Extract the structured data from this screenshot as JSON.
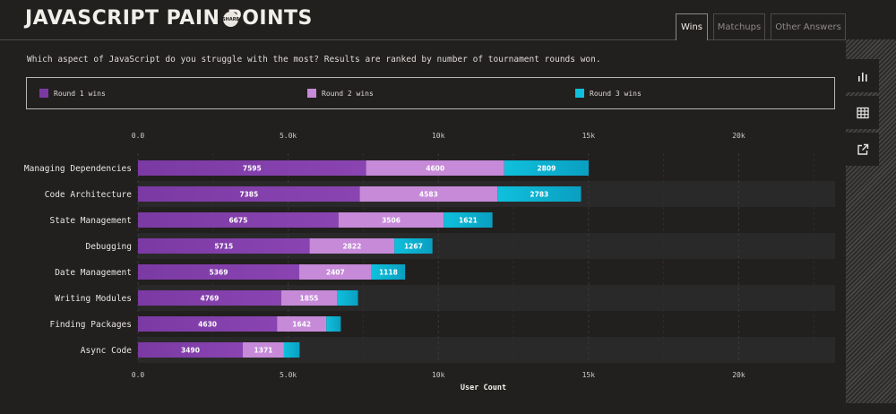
{
  "header": {
    "title": "JAVASCRIPT PAIN POINTS",
    "badge": "SHARE"
  },
  "tabs": [
    {
      "label": "Wins",
      "active": true
    },
    {
      "label": "Matchups",
      "active": false
    },
    {
      "label": "Other Answers",
      "active": false
    }
  ],
  "description": "Which aspect of JavaScript do you struggle with the most? Results are ranked by number of tournament rounds won.",
  "sidebar": {
    "icons": [
      "bar-chart-icon",
      "table-icon",
      "external-link-icon"
    ]
  },
  "chart_data": {
    "type": "bar",
    "orientation": "horizontal",
    "stacked": true,
    "title": "",
    "xlabel": "User Count",
    "ylabel": "",
    "xlim": [
      0,
      23000
    ],
    "ticks": [
      {
        "value": 0,
        "label": "0.0"
      },
      {
        "value": 5000,
        "label": "5.0k"
      },
      {
        "value": 10000,
        "label": "10k"
      },
      {
        "value": 15000,
        "label": "15k"
      },
      {
        "value": 20000,
        "label": "20k"
      }
    ],
    "categories": [
      "Managing Dependencies",
      "Code Architecture",
      "State Management",
      "Debugging",
      "Date Management",
      "Writing Modules",
      "Finding Packages",
      "Async Code"
    ],
    "series": [
      {
        "name": "Round 1 wins",
        "color": "#7b3aa3",
        "values": [
          7595,
          7385,
          6675,
          5715,
          5369,
          4769,
          4630,
          3490
        ],
        "labels": [
          "7595",
          "7385",
          "6675",
          "5715",
          "5369",
          "4769",
          "4630",
          "3490"
        ]
      },
      {
        "name": "Round 2 wins",
        "color": "#c68ad8",
        "values": [
          4600,
          4583,
          3506,
          2822,
          2407,
          1855,
          1642,
          1371
        ],
        "labels": [
          "4600",
          "4583",
          "3506",
          "2822",
          "2407",
          "1855",
          "1642",
          "1371"
        ]
      },
      {
        "name": "Round 3 wins",
        "color": "#0fc0dc",
        "values": [
          2809,
          2783,
          1621,
          1267,
          1118,
          700,
          480,
          520
        ],
        "labels": [
          "2809",
          "2783",
          "1621",
          "1267",
          "1118",
          "",
          "",
          ""
        ]
      }
    ]
  }
}
